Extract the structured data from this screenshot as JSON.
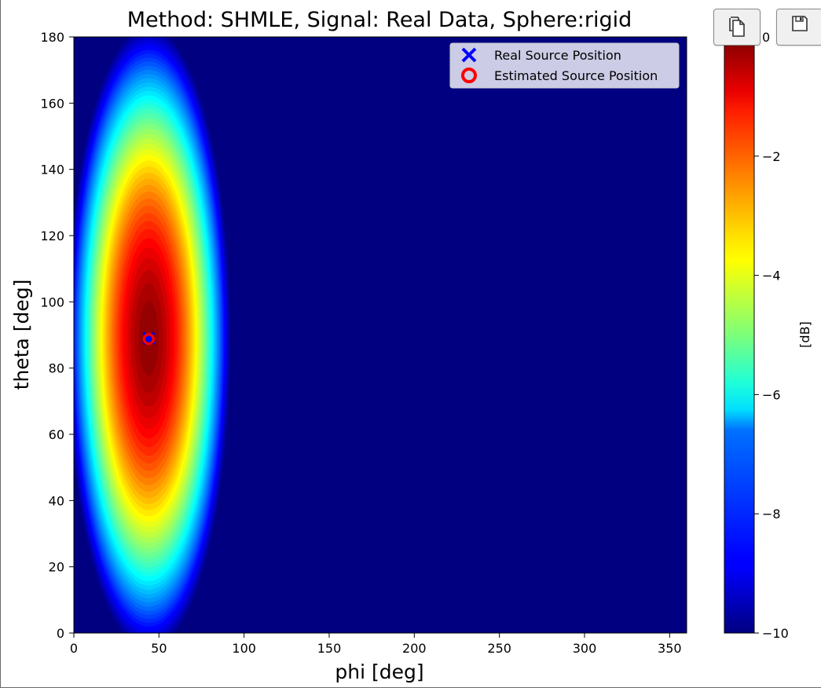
{
  "chart_data": {
    "type": "heatmap",
    "title": "Method: SHMLE, Signal: Real Data, Sphere:rigid",
    "xlabel": "phi [deg]",
    "ylabel": "theta [deg]",
    "xlim": [
      0,
      360
    ],
    "ylim": [
      0,
      180
    ],
    "x_ticks": [
      0,
      50,
      100,
      150,
      200,
      250,
      300,
      350
    ],
    "y_ticks": [
      0,
      20,
      40,
      60,
      80,
      100,
      120,
      140,
      160,
      180
    ],
    "colormap": "jet",
    "colorbar": {
      "label": "[dB]",
      "range": [
        -10,
        0
      ],
      "ticks": [
        0,
        -2,
        -4,
        -6,
        -8,
        -10
      ],
      "tick_labels": [
        "0",
        "−2",
        "−4",
        "−6",
        "−8",
        "−10"
      ]
    },
    "peak": {
      "phi": 44,
      "theta": 89,
      "value_db": 0,
      "spread_phi": 11,
      "spread_theta": 19
    },
    "floor_db": -10,
    "markers": [
      {
        "name": "Real Source Position",
        "marker": "x",
        "color": "#0000ff",
        "phi": 44,
        "theta": 89
      },
      {
        "name": "Estimated Source Position",
        "marker": "o",
        "color": "#ff0000",
        "phi": 44,
        "theta": 89
      }
    ],
    "legend_position": "top-right",
    "grid": false
  },
  "toolbar": {
    "copy_icon": "copy-icon",
    "save_icon": "save-icon"
  }
}
